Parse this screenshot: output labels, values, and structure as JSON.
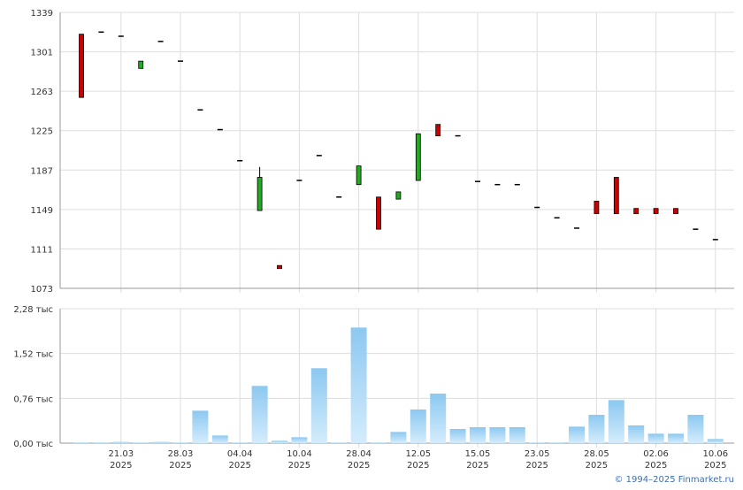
{
  "chart_data": [
    {
      "type": "candlestick",
      "categories": [
        null,
        null,
        "21.03 2025",
        null,
        null,
        "28.03 2025",
        null,
        null,
        "04.04 2025",
        null,
        null,
        "10.04 2025",
        null,
        null,
        "28.04 2025",
        null,
        null,
        "12.05 2025",
        null,
        null,
        "15.05 2025",
        null,
        null,
        "23.05 2025",
        null,
        null,
        "28.05 2025",
        null,
        null,
        "02.06 2025",
        null,
        null,
        "10.06 2025"
      ],
      "open": [
        1318,
        1320,
        1316,
        1285,
        1311,
        1292,
        1245,
        1226,
        1196,
        1148,
        1095,
        1177,
        1201,
        1161,
        1173,
        1161,
        1159,
        1177,
        1231,
        1220,
        1176,
        1173,
        1173,
        1151,
        1141,
        1131,
        1157,
        1180,
        1150,
        1150,
        1150,
        1130,
        1120
      ],
      "high": [
        1318,
        1320,
        1316,
        1292,
        1311,
        1292,
        1245,
        1226,
        1196,
        1190,
        1095,
        1177,
        1201,
        1161,
        1191,
        1161,
        1166,
        1222,
        1231,
        1220,
        1176,
        1173,
        1173,
        1151,
        1141,
        1131,
        1157,
        1180,
        1150,
        1150,
        1150,
        1130,
        1120
      ],
      "low": [
        1257,
        1320,
        1316,
        1285,
        1311,
        1292,
        1245,
        1226,
        1196,
        1148,
        1092,
        1177,
        1201,
        1161,
        1173,
        1130,
        1159,
        1177,
        1220,
        1220,
        1176,
        1173,
        1173,
        1151,
        1141,
        1131,
        1145,
        1145,
        1145,
        1145,
        1145,
        1130,
        1120
      ],
      "close": [
        1257,
        1320,
        1316,
        1292,
        1311,
        1292,
        1245,
        1226,
        1196,
        1180,
        1092,
        1177,
        1201,
        1161,
        1191,
        1130,
        1166,
        1222,
        1220,
        1220,
        1176,
        1173,
        1173,
        1151,
        1141,
        1131,
        1145,
        1145,
        1145,
        1145,
        1145,
        1130,
        1120
      ],
      "up_color": "#22aa22",
      "down_color": "#cc0000",
      "ylim": [
        1073,
        1339
      ],
      "yticks": [
        1073,
        1111,
        1149,
        1187,
        1225,
        1263,
        1301,
        1339
      ],
      "grid": true
    },
    {
      "type": "bar",
      "values": [
        0.01,
        0.01,
        0.02,
        0.01,
        0.02,
        0.01,
        0.55,
        0.13,
        0.01,
        0.97,
        0.04,
        0.1,
        1.27,
        0.01,
        1.96,
        0.01,
        0.19,
        0.57,
        0.84,
        0.24,
        0.27,
        0.27,
        0.27,
        0.01,
        0.01,
        0.28,
        0.48,
        0.73,
        0.3,
        0.16,
        0.16,
        0.48,
        0.07
      ],
      "color": "#8cc8f0",
      "ylim": [
        0,
        2.28
      ],
      "yticks": [
        {
          "value": 0,
          "label": "0,00 тыс"
        },
        {
          "value": 0.76,
          "label": "0,76 тыс"
        },
        {
          "value": 1.52,
          "label": "1,52 тыс"
        },
        {
          "value": 2.28,
          "label": "2,28 тыс"
        }
      ],
      "grid": true
    }
  ],
  "footer": "© 1994–2025 Finmarket.ru"
}
